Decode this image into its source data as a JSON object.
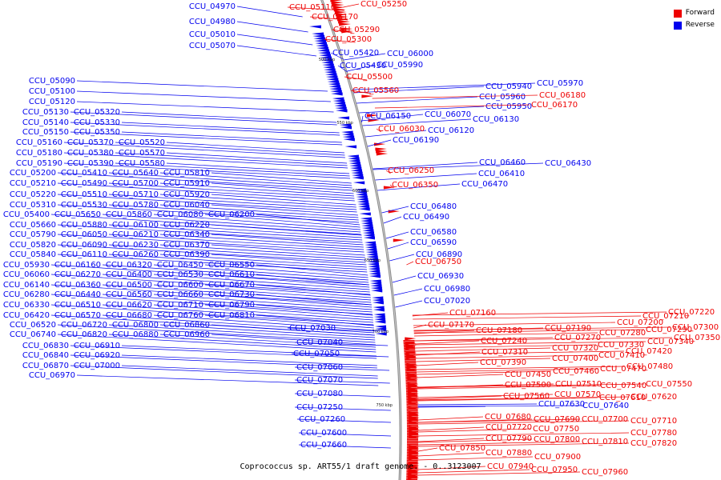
{
  "caption": "Coprococcus sp. ART55/1 draft genome. - 0..3123007",
  "legend": [
    {
      "label": "Forward",
      "color": "#ee0000"
    },
    {
      "label": "Reverse",
      "color": "#0000ee"
    }
  ],
  "tick_labels": [
    "500 kbp",
    "550 kbp",
    "600 kbp",
    "650 kbp",
    "700 kbp",
    "750 kbp"
  ],
  "colors": {
    "forward": "#ee0000",
    "reverse": "#0000ee",
    "backbone": "#888888"
  },
  "forward_labels": [
    "CCU_05250",
    "CCU_05110",
    "CCU_05170",
    "CCU_05290",
    "CCU_05300",
    "CCU_05500",
    "CCU_05560",
    "CCU_06180",
    "CCU_06170",
    "CCU_06030",
    "CCU_06250",
    "CCU_06350",
    "CCU_06750",
    "CCU_07160",
    "CCU_07170",
    "CCU_07220",
    "CCU_07210",
    "CCU_07200",
    "CCU_07190",
    "CCU_07180",
    "CCU_07300",
    "CCU_07290",
    "CCU_07280",
    "CCU_07270",
    "CCU_07240",
    "CCU_07350",
    "CCU_07340",
    "CCU_07330",
    "CCU_07320",
    "CCU_07310",
    "CCU_07420",
    "CCU_07410",
    "CCU_07400",
    "CCU_07390",
    "CCU_07480",
    "CCU_07470",
    "CCU_07460",
    "CCU_07450",
    "CCU_07550",
    "CCU_07540",
    "CCU_07510",
    "CCU_07500",
    "CCU_07620",
    "CCU_07610",
    "CCU_07570",
    "CCU_07560",
    "CCU_07710",
    "CCU_07700",
    "CCU_07690",
    "CCU_07680",
    "CCU_07780",
    "CCU_07750",
    "CCU_07720",
    "CCU_07820",
    "CCU_07810",
    "CCU_07800",
    "CCU_07790",
    "CCU_07850",
    "CCU_07900",
    "CCU_07880",
    "CCU_07960",
    "CCU_07950",
    "CCU_07940"
  ],
  "reverse_labels": [
    "CCU_04970",
    "CCU_04980",
    "CCU_05010",
    "CCU_05070",
    "CCU_05420",
    "CCU_05430",
    "CCU_05090",
    "CCU_05100",
    "CCU_05120",
    "CCU_05130",
    "CCU_05320",
    "CCU_05140",
    "CCU_05330",
    "CCU_05150",
    "CCU_05350",
    "CCU_05160",
    "CCU_05370",
    "CCU_05520",
    "CCU_05180",
    "CCU_05380",
    "CCU_05570",
    "CCU_05190",
    "CCU_05390",
    "CCU_05580",
    "CCU_05200",
    "CCU_05410",
    "CCU_05640",
    "CCU_05810",
    "CCU_05210",
    "CCU_05490",
    "CCU_05700",
    "CCU_05910",
    "CCU_05220",
    "CCU_05510",
    "CCU_05710",
    "CCU_05920",
    "CCU_05310",
    "CCU_05530",
    "CCU_05780",
    "CCU_06040",
    "CCU_05400",
    "CCU_05650",
    "CCU_05860",
    "CCU_06080",
    "CCU_06200",
    "CCU_05660",
    "CCU_05880",
    "CCU_06100",
    "CCU_06220",
    "CCU_05790",
    "CCU_06050",
    "CCU_06210",
    "CCU_06340",
    "CCU_05820",
    "CCU_06090",
    "CCU_06230",
    "CCU_06370",
    "CCU_05840",
    "CCU_06110",
    "CCU_06260",
    "CCU_06390",
    "CCU_05930",
    "CCU_06160",
    "CCU_06320",
    "CCU_06450",
    "CCU_06550",
    "CCU_06060",
    "CCU_06270",
    "CCU_06400",
    "CCU_06530",
    "CCU_06610",
    "CCU_06140",
    "CCU_06360",
    "CCU_06500",
    "CCU_06600",
    "CCU_06670",
    "CCU_06280",
    "CCU_06440",
    "CCU_06560",
    "CCU_06660",
    "CCU_06730",
    "CCU_06330",
    "CCU_06510",
    "CCU_06620",
    "CCU_06710",
    "CCU_06790",
    "CCU_06420",
    "CCU_06570",
    "CCU_06680",
    "CCU_06760",
    "CCU_06810",
    "CCU_06520",
    "CCU_06720",
    "CCU_06800",
    "CCU_06860",
    "CCU_06740",
    "CCU_06820",
    "CCU_06880",
    "CCU_06960",
    "CCU_06830",
    "CCU_06910",
    "CCU_06840",
    "CCU_06920",
    "CCU_06870",
    "CCU_07000",
    "CCU_06970",
    "CCU_06000",
    "CCU_05990",
    "CCU_05970",
    "CCU_05940",
    "CCU_05960",
    "CCU_05950",
    "CCU_06070",
    "CCU_06150",
    "CCU_06130",
    "CCU_06120",
    "CCU_06190",
    "CCU_06460",
    "CCU_06430",
    "CCU_06410",
    "CCU_06470",
    "CCU_06480",
    "CCU_06490",
    "CCU_06580",
    "CCU_06590",
    "CCU_06890",
    "CCU_06930",
    "CCU_06980",
    "CCU_07020",
    "CCU_07030",
    "CCU_07040",
    "CCU_07050",
    "CCU_07060",
    "CCU_07070",
    "CCU_07080",
    "CCU_07250",
    "CCU_07260",
    "CCU_07600",
    "CCU_07660",
    "CCU_07640",
    "CCU_07630"
  ]
}
